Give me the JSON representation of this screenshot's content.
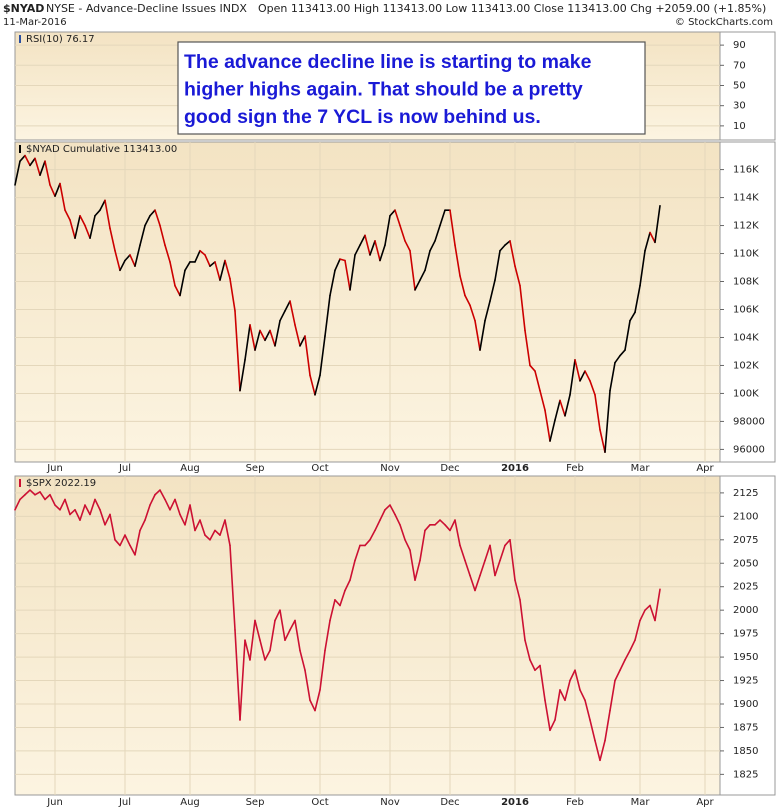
{
  "header": {
    "symbol": "$NYAD",
    "description": "NYSE - Advance-Decline Issues INDX",
    "date": "11-Mar-2016",
    "quote": "Open 113413.00 High 113413.00 Low 113413.00 Close 113413.00 Chg +2059.00 (+1.85%)",
    "credit": "© StockCharts.com"
  },
  "chart_data": [
    {
      "type": "line",
      "title": "RSI(10) 76.17",
      "ylim": [
        -4,
        103
      ],
      "yticks": [
        90,
        70,
        50,
        30,
        10
      ],
      "grid": true,
      "annotation": [
        "The advance decline line is starting to make",
        "higher highs again. That should be a pretty",
        "good sign the 7 YCL is now behind us."
      ]
    },
    {
      "type": "line",
      "title": "$NYAD Cumulative 113413.00",
      "grid": true,
      "ylim": [
        95100,
        117900
      ],
      "yticks": [
        {
          "value": 116000,
          "label": "116K"
        },
        {
          "value": 114000,
          "label": "114K"
        },
        {
          "value": 112000,
          "label": "112K"
        },
        {
          "value": 110000,
          "label": "110K"
        },
        {
          "value": 108000,
          "label": "108K"
        },
        {
          "value": 106000,
          "label": "106K"
        },
        {
          "value": 104000,
          "label": "104K"
        },
        {
          "value": 102000,
          "label": "102K"
        },
        {
          "value": 100000,
          "label": "100K"
        },
        98000,
        96000
      ],
      "categories": [
        null,
        null,
        null,
        null,
        null,
        null,
        null,
        null,
        "Jun",
        null,
        null,
        null,
        null,
        null,
        null,
        null,
        null,
        null,
        null,
        null,
        null,
        null,
        "Jul",
        null,
        null,
        null,
        null,
        null,
        null,
        null,
        null,
        null,
        null,
        null,
        null,
        "Aug",
        null,
        null,
        null,
        null,
        null,
        null,
        null,
        null,
        null,
        null,
        null,
        null,
        "Sep",
        null,
        null,
        null,
        null,
        null,
        null,
        null,
        null,
        null,
        null,
        null,
        null,
        "Oct",
        null,
        null,
        null,
        null,
        null,
        null,
        null,
        null,
        null,
        null,
        null,
        null,
        null,
        "Nov",
        null,
        null,
        null,
        null,
        null,
        null,
        null,
        null,
        null,
        null,
        null,
        "Dec",
        null,
        null,
        null,
        null,
        null,
        null,
        null,
        null,
        null,
        null,
        null,
        null,
        "2016",
        null,
        null,
        null,
        null,
        null,
        null,
        null,
        null,
        null,
        null,
        null,
        "Feb",
        null,
        null,
        null,
        null,
        null,
        null,
        null,
        null,
        null,
        null,
        null,
        null,
        "Mar",
        null,
        null,
        null,
        null,
        null,
        null,
        null,
        null,
        null,
        null,
        null,
        null,
        "Apr",
        null,
        null,
        null
      ],
      "series": [
        {
          "name": "$NYAD",
          "color": "#000000",
          "down_color": "#cc0000",
          "values": [
            114900,
            116600,
            117000,
            116300,
            116800,
            115600,
            116600,
            114900,
            114100,
            115000,
            113100,
            112400,
            111100,
            112700,
            112000,
            111100,
            112700,
            113100,
            113800,
            111800,
            110200,
            108800,
            109500,
            109900,
            109100,
            110600,
            112000,
            112700,
            113100,
            112000,
            110600,
            109400,
            107700,
            107000,
            108800,
            109400,
            109400,
            110200,
            109900,
            109100,
            109400,
            108100,
            109500,
            108200,
            105900,
            100200,
            102400,
            104900,
            103100,
            104500,
            103800,
            104500,
            103400,
            105200,
            105900,
            106600,
            104900,
            103400,
            104100,
            101300,
            99900,
            101300,
            104100,
            107000,
            108800,
            109600,
            109500,
            107400,
            109900,
            110600,
            111300,
            109900,
            110900,
            109500,
            110600,
            112700,
            113100,
            112000,
            110900,
            110200,
            107400,
            108100,
            108800,
            110200,
            110900,
            112000,
            113100,
            113100,
            110600,
            108400,
            107000,
            106300,
            105200,
            103100,
            105200,
            106600,
            108100,
            110200,
            110600,
            110900,
            109100,
            107700,
            104500,
            102000,
            101600,
            100200,
            98800,
            96600,
            98100,
            99500,
            98400,
            99900,
            102400,
            100900,
            101600,
            100900,
            99900,
            97400,
            95800,
            100200,
            102200,
            102700,
            103100,
            105200,
            105800,
            107700,
            110200,
            111500,
            110800,
            113413,
            null,
            null,
            null,
            null,
            null,
            null,
            null,
            null,
            null,
            null,
            null,
            null
          ]
        }
      ]
    },
    {
      "type": "line",
      "title": "$SPX 2022.19",
      "grid": true,
      "ylim": [
        1803,
        2143
      ],
      "yticks": [
        2125,
        2100,
        2075,
        2050,
        2025,
        2000,
        1975,
        1950,
        1925,
        1900,
        1875,
        1850,
        1825
      ],
      "categories": [
        null,
        null,
        null,
        null,
        null,
        null,
        null,
        null,
        "Jun",
        null,
        null,
        null,
        null,
        null,
        null,
        null,
        null,
        null,
        null,
        null,
        null,
        null,
        "Jul",
        null,
        null,
        null,
        null,
        null,
        null,
        null,
        null,
        null,
        null,
        null,
        null,
        "Aug",
        null,
        null,
        null,
        null,
        null,
        null,
        null,
        null,
        null,
        null,
        null,
        null,
        "Sep",
        null,
        null,
        null,
        null,
        null,
        null,
        null,
        null,
        null,
        null,
        null,
        null,
        "Oct",
        null,
        null,
        null,
        null,
        null,
        null,
        null,
        null,
        null,
        null,
        null,
        null,
        null,
        "Nov",
        null,
        null,
        null,
        null,
        null,
        null,
        null,
        null,
        null,
        null,
        null,
        "Dec",
        null,
        null,
        null,
        null,
        null,
        null,
        null,
        null,
        null,
        null,
        null,
        null,
        "2016",
        null,
        null,
        null,
        null,
        null,
        null,
        null,
        null,
        null,
        null,
        null,
        "Feb",
        null,
        null,
        null,
        null,
        null,
        null,
        null,
        null,
        null,
        null,
        null,
        null,
        "Mar",
        null,
        null,
        null,
        null,
        null,
        null,
        null,
        null,
        null,
        null,
        null,
        null,
        "Apr",
        null,
        null,
        null
      ],
      "series": [
        {
          "name": "$SPX",
          "color": "#cc1133",
          "values": [
            2107,
            2118,
            2123,
            2128,
            2123,
            2126,
            2118,
            2123,
            2112,
            2107,
            2118,
            2102,
            2107,
            2096,
            2112,
            2102,
            2118,
            2107,
            2091,
            2102,
            2075,
            2069,
            2080,
            2069,
            2059,
            2085,
            2096,
            2112,
            2123,
            2128,
            2118,
            2107,
            2118,
            2102,
            2091,
            2112,
            2085,
            2096,
            2080,
            2075,
            2085,
            2080,
            2096,
            2069,
            1979,
            1883,
            1968,
            1947,
            1989,
            1968,
            1947,
            1957,
            1989,
            2000,
            1968,
            1979,
            1989,
            1957,
            1936,
            1904,
            1893,
            1915,
            1957,
            1989,
            2011,
            2005,
            2021,
            2032,
            2053,
            2069,
            2069,
            2075,
            2085,
            2096,
            2107,
            2112,
            2102,
            2091,
            2075,
            2064,
            2032,
            2053,
            2085,
            2091,
            2091,
            2096,
            2091,
            2085,
            2096,
            2069,
            2053,
            2037,
            2021,
            2037,
            2053,
            2069,
            2037,
            2053,
            2069,
            2075,
            2032,
            2011,
            1968,
            1947,
            1936,
            1941,
            1904,
            1872,
            1883,
            1915,
            1904,
            1925,
            1936,
            1915,
            1904,
            1883,
            1861,
            1840,
            1861,
            1893,
            1925,
            1936,
            1947,
            1957,
            1968,
            1989,
            2000,
            2005,
            1989,
            2022.19,
            null,
            null,
            null,
            null,
            null,
            null,
            null,
            null,
            null,
            null,
            null,
            null
          ]
        }
      ]
    }
  ]
}
